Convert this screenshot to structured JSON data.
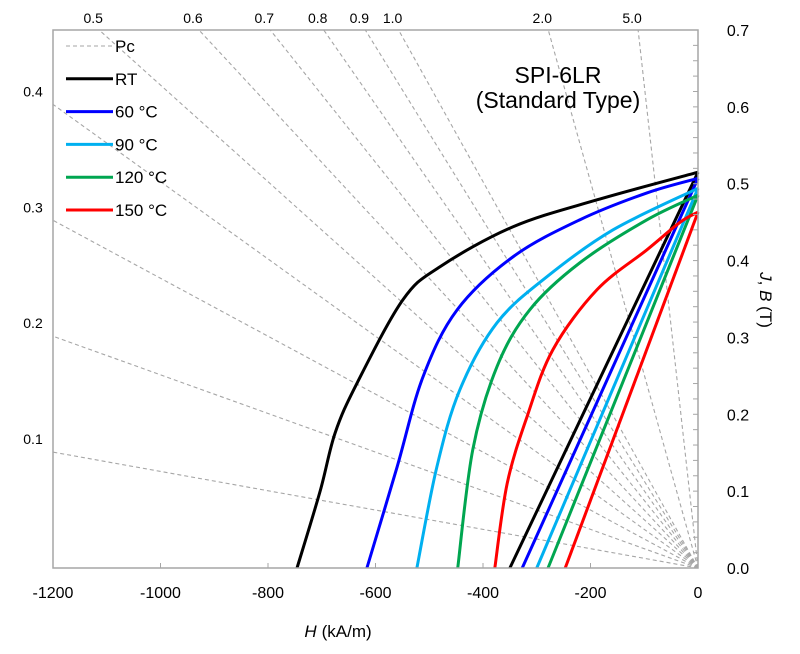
{
  "chart_data": {
    "type": "line",
    "title": "SPI-6LR",
    "subtitle": "(Standard Type)",
    "xlabel_var": "H",
    "xlabel_unit": "(kA/m)",
    "ylabel_vars": [
      "J",
      ", ",
      "B"
    ],
    "ylabel_unit": " (T)",
    "xlim": [
      -1200,
      0
    ],
    "ylim": [
      0,
      0.7
    ],
    "xticks": [
      "-1200",
      "-1000",
      "-800",
      "-600",
      "-400",
      "-200",
      "0"
    ],
    "yticks": [
      "0.0",
      "0.1",
      "0.2",
      "0.3",
      "0.4",
      "0.5",
      "0.6",
      "0.7"
    ],
    "y_axis_side": "right",
    "grid": false,
    "legend_position": "top-left",
    "pc_lines": {
      "name": "Pc",
      "color": "#a6a6a6",
      "style": "dashed",
      "values": [
        0.1,
        0.2,
        0.3,
        0.4,
        0.5,
        0.6,
        0.7,
        0.8,
        0.9,
        1.0,
        2.0,
        5.0
      ],
      "labels": [
        "0.1",
        "0.2",
        "0.3",
        "0.4",
        "0.5",
        "0.6",
        "0.7",
        "0.8",
        "0.9",
        "1.0",
        "2.0",
        "5.0"
      ]
    },
    "series": [
      {
        "name": "RT",
        "color": "#000000",
        "J": [
          [
            -746,
            0
          ],
          [
            -703,
            0.1
          ],
          [
            -675,
            0.176
          ],
          [
            -634,
            0.241
          ],
          [
            -549,
            0.349
          ],
          [
            -480,
            0.392
          ],
          [
            -344,
            0.444
          ],
          [
            -188,
            0.479
          ],
          [
            0,
            0.515
          ]
        ],
        "B": [
          [
            -350,
            0
          ],
          [
            0,
            0.515
          ]
        ]
      },
      {
        "name": "60 °C",
        "color": "#0000ff",
        "J": [
          [
            -616,
            0
          ],
          [
            -560,
            0.131
          ],
          [
            -512,
            0.248
          ],
          [
            -448,
            0.336
          ],
          [
            -344,
            0.405
          ],
          [
            -220,
            0.453
          ],
          [
            -95,
            0.488
          ],
          [
            0,
            0.507
          ]
        ],
        "B": [
          [
            -327,
            0
          ],
          [
            0,
            0.507
          ]
        ]
      },
      {
        "name": "90 °C",
        "color": "#00b0f0",
        "J": [
          [
            -523,
            0
          ],
          [
            -486,
            0.131
          ],
          [
            -443,
            0.232
          ],
          [
            -374,
            0.319
          ],
          [
            -281,
            0.379
          ],
          [
            -158,
            0.44
          ],
          [
            0,
            0.494
          ]
        ],
        "B": [
          [
            -300,
            0
          ],
          [
            0,
            0.494
          ]
        ]
      },
      {
        "name": "120 °C",
        "color": "#00a650",
        "J": [
          [
            -447,
            0
          ],
          [
            -419,
            0.154
          ],
          [
            -374,
            0.262
          ],
          [
            -313,
            0.336
          ],
          [
            -220,
            0.397
          ],
          [
            -95,
            0.453
          ],
          [
            0,
            0.485
          ]
        ],
        "B": [
          [
            -279,
            0
          ],
          [
            0,
            0.485
          ]
        ]
      },
      {
        "name": "150 °C",
        "color": "#ff0000",
        "J": [
          [
            -378,
            0
          ],
          [
            -355,
            0.11
          ],
          [
            -318,
            0.197
          ],
          [
            -270,
            0.284
          ],
          [
            -188,
            0.362
          ],
          [
            -95,
            0.414
          ],
          [
            -33,
            0.45
          ],
          [
            0,
            0.463
          ]
        ],
        "B": [
          [
            -247,
            0
          ],
          [
            0,
            0.463
          ]
        ]
      }
    ]
  }
}
